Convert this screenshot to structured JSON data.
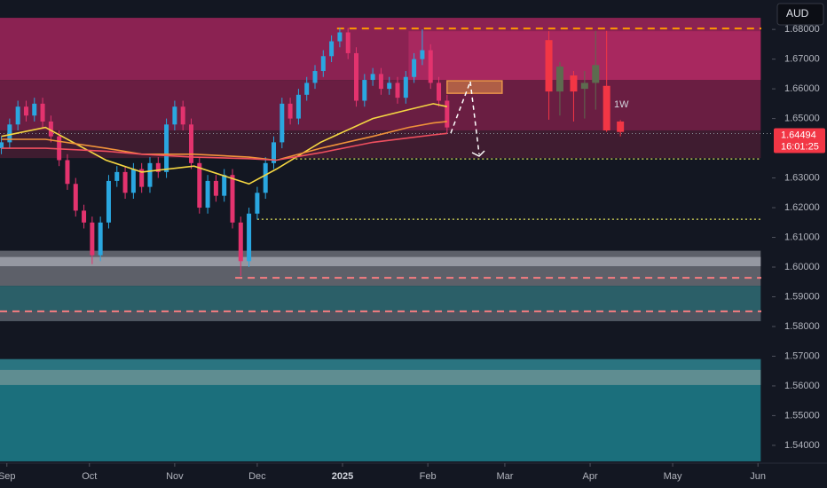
{
  "chart_data": {
    "type": "candlestick",
    "currency": "AUD",
    "annotation": "1W",
    "last_price": 1.64494,
    "countdown": "16:01:25",
    "xlim": [
      -2.5,
      278.1
    ],
    "ylim": [
      1.534,
      1.6899
    ],
    "xticks": [
      {
        "value": 0,
        "label": "Sep"
      },
      {
        "value": 30,
        "label": "Oct"
      },
      {
        "value": 61,
        "label": "Nov"
      },
      {
        "value": 91,
        "label": "Dec"
      },
      {
        "value": 122,
        "label": "2025"
      },
      {
        "value": 153,
        "label": "Feb"
      },
      {
        "value": 181,
        "label": "Mar"
      },
      {
        "value": 212,
        "label": "Apr"
      },
      {
        "value": 242,
        "label": "May"
      },
      {
        "value": 273,
        "label": "Jun"
      }
    ],
    "yticks": [
      {
        "value": 1.68,
        "label": "1.68000"
      },
      {
        "value": 1.67,
        "label": "1.67000"
      },
      {
        "value": 1.66,
        "label": "1.66000"
      },
      {
        "value": 1.65,
        "label": "1.65000"
      },
      {
        "value": 1.63,
        "label": "1.63000"
      },
      {
        "value": 1.62,
        "label": "1.62000"
      },
      {
        "value": 1.61,
        "label": "1.61000"
      },
      {
        "value": 1.6,
        "label": "1.60000"
      },
      {
        "value": 1.59,
        "label": "1.59000"
      },
      {
        "value": 1.58,
        "label": "1.58000"
      },
      {
        "value": 1.57,
        "label": "1.57000"
      },
      {
        "value": 1.56,
        "label": "1.56000"
      },
      {
        "value": 1.55,
        "label": "1.55000"
      },
      {
        "value": 1.54,
        "label": "1.54000"
      }
    ],
    "zones": [
      {
        "top": 1.6839,
        "bottom": 1.663,
        "start": -2.5,
        "end": 274,
        "color": "#8b2252"
      },
      {
        "top": 1.663,
        "bottom": 1.646,
        "start": -2.5,
        "end": 274,
        "color": "#6a1e42"
      },
      {
        "top": 1.646,
        "bottom": 1.6367,
        "start": -2.5,
        "end": 274,
        "color": "#3f1c30"
      },
      {
        "top": 1.6794,
        "bottom": 1.663,
        "start": 146,
        "end": 274,
        "color": "#a8285f"
      },
      {
        "top": 1.6055,
        "bottom": 1.5937,
        "start": -2.5,
        "end": 274,
        "color": "#5d6069"
      },
      {
        "top": 1.6034,
        "bottom": 1.6003,
        "start": -2.5,
        "end": 274,
        "color": "#9598a1"
      },
      {
        "top": 1.5937,
        "bottom": 1.5818,
        "start": -2.5,
        "end": 274,
        "color": "#2b5f68"
      },
      {
        "top": 1.5853,
        "bottom": 1.5818,
        "start": -2.5,
        "end": 274,
        "color": "#4e5560"
      },
      {
        "top": 1.569,
        "bottom": 1.5346,
        "start": -2.5,
        "end": 274,
        "color": "#1b6f7c"
      },
      {
        "top": 1.569,
        "bottom": 1.5654,
        "start": -2.5,
        "end": 274,
        "color": "#2a7480"
      },
      {
        "top": 1.5654,
        "bottom": 1.5603,
        "start": -2.5,
        "end": 274,
        "color": "#5f8d91"
      }
    ],
    "box": {
      "top": 1.6627,
      "bottom": 1.6585,
      "start": 160,
      "end": 180,
      "color": "#e8934a"
    },
    "levels": [
      {
        "value": 1.6803,
        "start": 120,
        "color": "#ff9800",
        "dash": "dashed"
      },
      {
        "value": 1.6364,
        "start": 105,
        "color": "#e6e65c",
        "dash": "dotted"
      },
      {
        "value": 1.6161,
        "start": 91,
        "color": "#e6e65c",
        "dash": "dotted"
      },
      {
        "value": 1.5964,
        "start": 83,
        "color": "#f77c80",
        "dash": "dashed"
      },
      {
        "value": 1.5851,
        "start": -2.5,
        "color": "#f77c80",
        "dash": "dashed"
      }
    ],
    "candles": {
      "up_color": "#2aa7e0",
      "down_color": "#e3336e",
      "x": [
        -2,
        1,
        4,
        7,
        10,
        13,
        16,
        19,
        22,
        25,
        28,
        31,
        34,
        37,
        40,
        43,
        46,
        49,
        52,
        55,
        58,
        61,
        64,
        67,
        70,
        73,
        76,
        79,
        82,
        85,
        88,
        91,
        94,
        97,
        100,
        103,
        106,
        109,
        112,
        115,
        118,
        121,
        124,
        127,
        130,
        133,
        136,
        139,
        142,
        145,
        148,
        151,
        154,
        157,
        160
      ],
      "open": [
        1.64,
        1.642,
        1.648,
        1.654,
        1.651,
        1.655,
        1.649,
        1.644,
        1.636,
        1.628,
        1.619,
        1.615,
        1.604,
        1.615,
        1.629,
        1.632,
        1.625,
        1.633,
        1.627,
        1.635,
        1.632,
        1.648,
        1.654,
        1.648,
        1.635,
        1.62,
        1.629,
        1.624,
        1.631,
        1.615,
        1.602,
        1.618,
        1.625,
        1.635,
        1.642,
        1.655,
        1.65,
        1.658,
        1.662,
        1.666,
        1.671,
        1.676,
        1.679,
        1.672,
        1.656,
        1.663,
        1.665,
        1.66,
        1.662,
        1.657,
        1.664,
        1.67,
        1.673,
        1.662,
        1.656
      ],
      "high": [
        1.644,
        1.65,
        1.656,
        1.656,
        1.657,
        1.657,
        1.651,
        1.646,
        1.638,
        1.63,
        1.621,
        1.617,
        1.617,
        1.631,
        1.634,
        1.634,
        1.635,
        1.635,
        1.637,
        1.637,
        1.65,
        1.656,
        1.656,
        1.65,
        1.637,
        1.631,
        1.631,
        1.633,
        1.633,
        1.617,
        1.62,
        1.627,
        1.637,
        1.644,
        1.657,
        1.657,
        1.66,
        1.664,
        1.668,
        1.673,
        1.678,
        1.6805,
        1.6805,
        1.674,
        1.665,
        1.667,
        1.667,
        1.664,
        1.664,
        1.666,
        1.672,
        1.68,
        1.675,
        1.664,
        1.658
      ],
      "low": [
        1.638,
        1.64,
        1.646,
        1.649,
        1.649,
        1.647,
        1.642,
        1.634,
        1.626,
        1.617,
        1.613,
        1.601,
        1.602,
        1.613,
        1.627,
        1.623,
        1.623,
        1.625,
        1.625,
        1.63,
        1.63,
        1.646,
        1.646,
        1.633,
        1.618,
        1.618,
        1.622,
        1.622,
        1.613,
        1.597,
        1.6,
        1.616,
        1.623,
        1.633,
        1.64,
        1.648,
        1.648,
        1.656,
        1.66,
        1.664,
        1.669,
        1.674,
        1.67,
        1.654,
        1.654,
        1.661,
        1.658,
        1.658,
        1.655,
        1.655,
        1.662,
        1.668,
        1.66,
        1.654,
        1.645
      ],
      "close": [
        1.642,
        1.648,
        1.654,
        1.651,
        1.655,
        1.649,
        1.644,
        1.636,
        1.628,
        1.619,
        1.615,
        1.604,
        1.615,
        1.629,
        1.632,
        1.625,
        1.633,
        1.627,
        1.635,
        1.632,
        1.648,
        1.654,
        1.648,
        1.635,
        1.62,
        1.629,
        1.624,
        1.631,
        1.615,
        1.602,
        1.618,
        1.625,
        1.635,
        1.642,
        1.655,
        1.65,
        1.658,
        1.662,
        1.666,
        1.671,
        1.676,
        1.679,
        1.672,
        1.656,
        1.663,
        1.665,
        1.66,
        1.662,
        1.657,
        1.664,
        1.67,
        1.673,
        1.662,
        1.656,
        1.647
      ]
    },
    "weekly_candles": {
      "up_color": "#5d6b4f",
      "down_color": "#f23645",
      "x": [
        197,
        201,
        206,
        210,
        214,
        218,
        223
      ],
      "open": [
        1.6764,
        1.6591,
        1.6645,
        1.66,
        1.662,
        1.661,
        1.649
      ],
      "high": [
        1.6794,
        1.669,
        1.666,
        1.666,
        1.6795,
        1.6795,
        1.6495
      ],
      "low": [
        1.6496,
        1.651,
        1.649,
        1.65,
        1.653,
        1.6455,
        1.644
      ],
      "close": [
        1.6591,
        1.6675,
        1.6591,
        1.662,
        1.668,
        1.646,
        1.6455
      ]
    },
    "ma_x": [
      -2,
      14,
      36,
      49,
      68,
      88,
      98,
      114,
      133,
      146,
      155,
      160
    ],
    "lines": [
      {
        "color": "#f5d742",
        "values": [
          1.644,
          1.647,
          1.636,
          1.632,
          1.634,
          1.628,
          1.633,
          1.642,
          1.65,
          1.653,
          1.655,
          1.654
        ]
      },
      {
        "color": "#f0923a",
        "values": [
          1.643,
          1.643,
          1.64,
          1.638,
          1.638,
          1.637,
          1.636,
          1.64,
          1.644,
          1.647,
          1.6485,
          1.649
        ]
      },
      {
        "color": "#ef4f5f",
        "values": [
          1.64,
          1.64,
          1.639,
          1.638,
          1.637,
          1.6365,
          1.636,
          1.6385,
          1.642,
          1.6435,
          1.6445,
          1.645
        ]
      }
    ]
  }
}
